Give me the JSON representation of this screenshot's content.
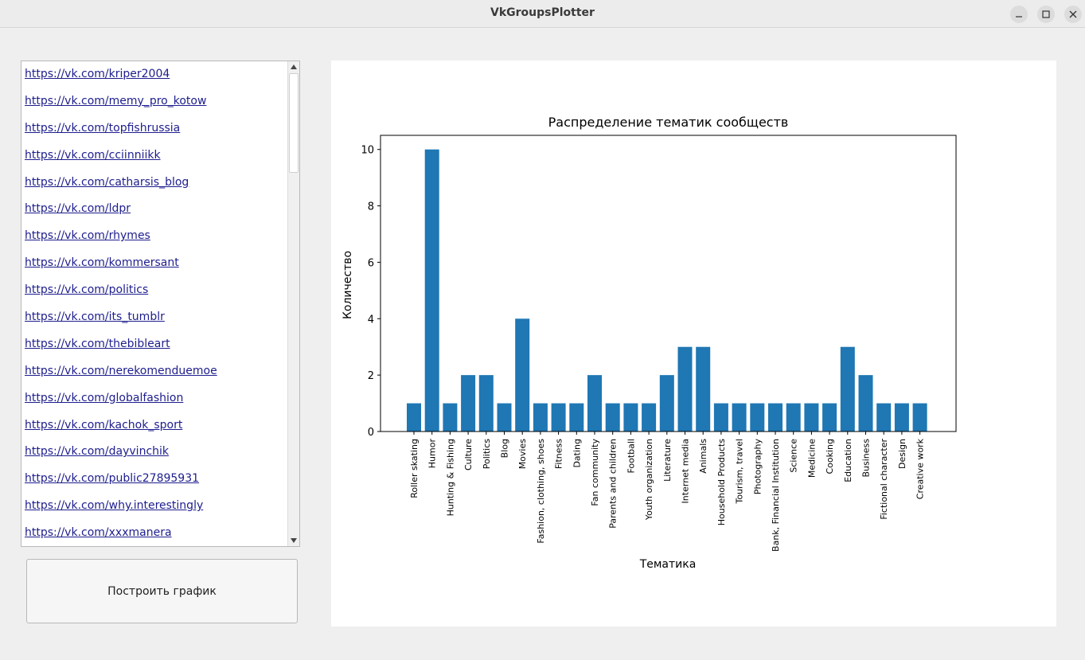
{
  "window": {
    "title": "VkGroupsPlotter",
    "controls": [
      "minimize-icon",
      "maximize-icon",
      "close-icon"
    ]
  },
  "sidebar": {
    "links": [
      "https://vk.com/kriper2004",
      "https://vk.com/memy_pro_kotow",
      "https://vk.com/topfishrussia",
      "https://vk.com/cciinniikk",
      "https://vk.com/catharsis_blog",
      "https://vk.com/ldpr",
      "https://vk.com/rhymes",
      "https://vk.com/kommersant",
      "https://vk.com/politics",
      "https://vk.com/its_tumblr",
      "https://vk.com/thebibleart",
      "https://vk.com/nerekomenduemoe",
      "https://vk.com/globalfashion",
      "https://vk.com/kachok_sport",
      "https://vk.com/dayvinchik",
      "https://vk.com/public27895931",
      "https://vk.com/why.interestingly",
      "https://vk.com/xxxmanera"
    ],
    "plot_button_label": "Построить график"
  },
  "chart_data": {
    "type": "bar",
    "title": "Распределение тематик сообществ",
    "xlabel": "Тематика",
    "ylabel": "Количество",
    "categories": [
      "Roller skating",
      "Humor",
      "Hunting & Fishing",
      "Culture",
      "Politics",
      "Blog",
      "Movies",
      "Fashion, clothing, shoes",
      "Fitness",
      "Dating",
      "Fan community",
      "Parents and children",
      "Football",
      "Youth organization",
      "Literature",
      "Internet media",
      "Animals",
      "Household Products",
      "Tourism, travel",
      "Photography",
      "Bank, Financial Institution",
      "Science",
      "Medicine",
      "Cooking",
      "Education",
      "Business",
      "Fictional character",
      "Design",
      "Creative work"
    ],
    "values": [
      1,
      10,
      1,
      2,
      2,
      1,
      4,
      1,
      1,
      1,
      2,
      1,
      1,
      1,
      2,
      3,
      3,
      1,
      1,
      1,
      1,
      1,
      1,
      1,
      3,
      2,
      1,
      1,
      1
    ],
    "yticks": [
      0,
      2,
      4,
      6,
      8,
      10
    ],
    "ylim": [
      0,
      10.5
    ],
    "bar_color": "#1f77b4",
    "grid": false
  }
}
